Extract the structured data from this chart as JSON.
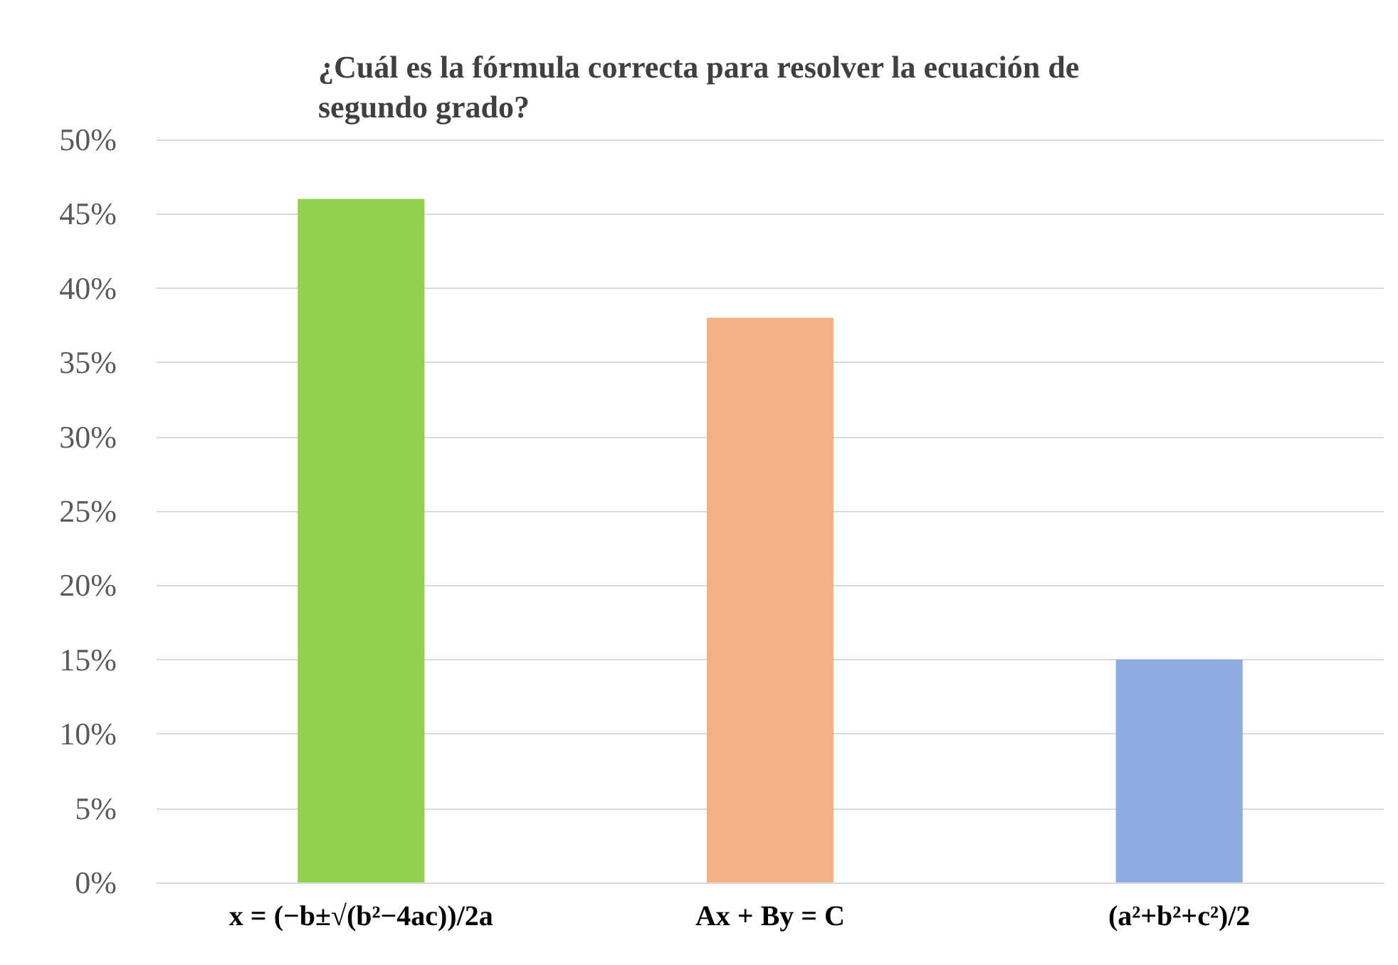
{
  "chart_data": {
    "type": "bar",
    "title": "¿Cuál es la fórmula correcta para resolver la ecuación de\nsegundo grado?",
    "categories": [
      "x = (−b±√(b²−4ac))/2a",
      "Ax + By = C",
      "(a²+b²+c²)/2"
    ],
    "values": [
      46,
      38,
      15
    ],
    "colors": [
      "#92d050",
      "#f4b183",
      "#8faadc"
    ],
    "ylim": [
      0,
      50
    ],
    "yticks": [
      {
        "value": 0,
        "label": "0%"
      },
      {
        "value": 5,
        "label": "5%"
      },
      {
        "value": 10,
        "label": "10%"
      },
      {
        "value": 15,
        "label": "15%"
      },
      {
        "value": 20,
        "label": "20%"
      },
      {
        "value": 25,
        "label": "25%"
      },
      {
        "value": 30,
        "label": "30%"
      },
      {
        "value": 35,
        "label": "35%"
      },
      {
        "value": 40,
        "label": "40%"
      },
      {
        "value": 45,
        "label": "45%"
      },
      {
        "value": 50,
        "label": "50%"
      }
    ],
    "grid": "y"
  }
}
